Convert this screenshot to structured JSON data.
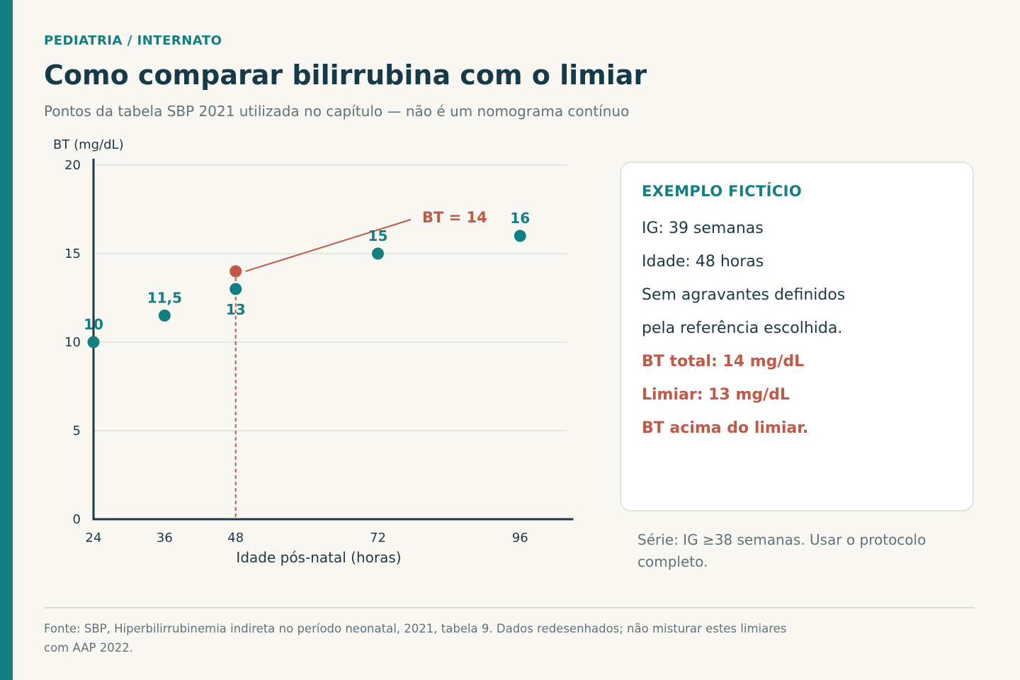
{
  "header": {
    "eyebrow": "PEDIATRIA / INTERNATO",
    "title": "Como comparar bilirrubina com o limiar",
    "subtitle": "Pontos da tabela SBP 2021 utilizada no capítulo — não é um nomograma contínuo"
  },
  "chart_data": {
    "type": "scatter",
    "title": "",
    "xlabel": "Idade pós-natal (horas)",
    "ylabel": "BT (mg/dL)",
    "x_ticks": [
      24,
      36,
      48,
      72,
      96
    ],
    "y_ticks": [
      0,
      5,
      10,
      15,
      20
    ],
    "xlim": [
      24,
      105
    ],
    "ylim": [
      0,
      20
    ],
    "grid": "horizontal",
    "threshold_points": [
      {
        "x": 24,
        "y": 10,
        "label": "10"
      },
      {
        "x": 36,
        "y": 11.5,
        "label": "11,5"
      },
      {
        "x": 48,
        "y": 13,
        "label": "13"
      },
      {
        "x": 72,
        "y": 15,
        "label": "15"
      },
      {
        "x": 96,
        "y": 16,
        "label": "16"
      }
    ],
    "patient_point": {
      "x": 48,
      "y": 14,
      "label": "BT = 14"
    },
    "colors": {
      "threshold": "#137f80",
      "patient": "#c05a47",
      "axis": "#1b3a45",
      "grid": "#d9e2dd"
    }
  },
  "panel": {
    "title": "EXEMPLO FICTÍCIO",
    "lines": [
      "IG: 39 semanas",
      "Idade: 48 horas",
      "Sem agravantes definidos",
      "pela referência escolhida."
    ],
    "alerts": [
      "BT total: 14 mg/dL",
      "Limiar: 13 mg/dL",
      "BT acima do limiar."
    ]
  },
  "series_note": "Série: IG ≥38 semanas. Usar o protocolo completo.",
  "footer": {
    "source": "Fonte: SBP, Hiperbilirrubinemia indireta no período neonatal, 2021, tabela 9. Dados redesenhados; não misturar estes limiares com AAP 2022."
  }
}
